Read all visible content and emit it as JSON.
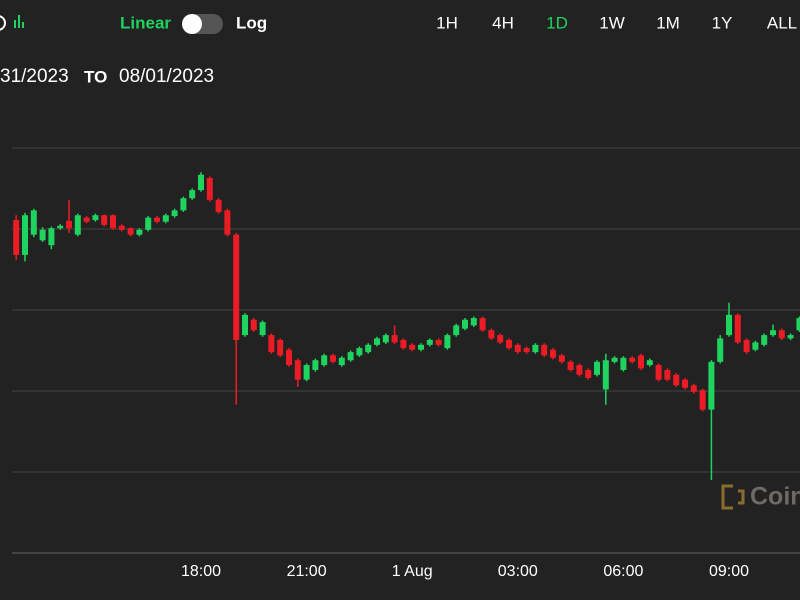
{
  "toolbar": {
    "scale_linear": "Linear",
    "scale_log": "Log",
    "ranges": [
      "1H",
      "4H",
      "1D",
      "1W",
      "1M",
      "1Y",
      "ALL"
    ],
    "active_range": "1D"
  },
  "date_range": {
    "from": "31/2023",
    "to_label": "TO",
    "to": "08/01/2023"
  },
  "watermark": "Coin",
  "chart_data": {
    "type": "candlestick",
    "categories": [
      null,
      null,
      null,
      null,
      null,
      null,
      null,
      null,
      null,
      null,
      null,
      null,
      null,
      null,
      null,
      null,
      null,
      null,
      null,
      null,
      null,
      "18:00",
      null,
      null,
      null,
      null,
      null,
      null,
      null,
      null,
      null,
      null,
      null,
      "21:00",
      null,
      null,
      null,
      null,
      null,
      null,
      null,
      null,
      null,
      null,
      null,
      "1 Aug",
      null,
      null,
      null,
      null,
      null,
      null,
      null,
      null,
      null,
      null,
      null,
      "03:00",
      null,
      null,
      null,
      null,
      null,
      null,
      null,
      null,
      null,
      null,
      null,
      "06:00",
      null,
      null,
      null,
      null,
      null,
      null,
      null,
      null,
      null,
      null,
      null,
      "09:00",
      null,
      null,
      null,
      null,
      null,
      null,
      null,
      null
    ],
    "open": [
      411,
      368,
      393,
      386,
      380,
      401,
      410,
      393,
      414,
      411,
      417,
      417,
      404,
      401,
      393,
      399,
      414,
      409,
      416,
      423,
      438,
      448,
      463,
      436,
      423,
      393,
      269,
      288,
      269,
      269,
      263,
      251,
      238,
      214,
      226,
      232,
      244,
      232,
      238,
      244,
      248,
      257,
      260,
      269,
      263,
      257,
      251,
      257,
      263,
      253,
      269,
      277,
      281,
      290,
      275,
      269,
      263,
      257,
      253,
      248,
      257,
      251,
      244,
      236,
      232,
      226,
      220,
      202,
      236,
      226,
      241,
      244,
      232,
      232,
      226,
      220,
      214,
      207,
      201,
      177,
      236,
      269,
      294,
      263,
      251,
      257,
      269,
      275,
      265,
      275
    ],
    "high": [
      417,
      420,
      425,
      402,
      403,
      406,
      436,
      419,
      416,
      419,
      418,
      418,
      406,
      402,
      401,
      416,
      416,
      419,
      425,
      440,
      450,
      470,
      465,
      438,
      425,
      395,
      296,
      290,
      287,
      271,
      265,
      253,
      240,
      234,
      240,
      246,
      246,
      243,
      250,
      255,
      259,
      267,
      271,
      281,
      265,
      259,
      259,
      265,
      265,
      271,
      283,
      290,
      292,
      292,
      277,
      271,
      265,
      259,
      255,
      259,
      259,
      253,
      246,
      238,
      234,
      228,
      238,
      246,
      243,
      243,
      243,
      246,
      240,
      234,
      228,
      222,
      216,
      209,
      203,
      238,
      269,
      309,
      296,
      265,
      262,
      271,
      282,
      277,
      271,
      292
    ],
    "low": [
      362,
      360,
      390,
      384,
      375,
      399,
      395,
      391,
      407,
      409,
      403,
      399,
      397,
      391,
      391,
      397,
      407,
      407,
      414,
      421,
      436,
      446,
      434,
      419,
      391,
      183,
      267,
      273,
      267,
      246,
      242,
      230,
      205,
      212,
      224,
      230,
      234,
      230,
      236,
      242,
      246,
      255,
      258,
      258,
      251,
      249,
      249,
      255,
      255,
      251,
      267,
      275,
      279,
      273,
      263,
      258,
      251,
      246,
      246,
      246,
      242,
      239,
      234,
      224,
      218,
      214,
      218,
      183,
      234,
      224,
      234,
      226,
      230,
      212,
      212,
      205,
      202,
      197,
      175,
      90,
      234,
      267,
      258,
      246,
      249,
      255,
      267,
      263,
      263,
      273
    ],
    "close": [
      368,
      417,
      423,
      399,
      401,
      404,
      401,
      417,
      409,
      417,
      405,
      401,
      399,
      393,
      399,
      414,
      409,
      417,
      423,
      438,
      448,
      467,
      436,
      421,
      393,
      263,
      294,
      275,
      285,
      248,
      244,
      232,
      214,
      232,
      238,
      244,
      236,
      241,
      248,
      253,
      257,
      265,
      269,
      260,
      253,
      251,
      257,
      263,
      257,
      269,
      281,
      288,
      290,
      275,
      265,
      260,
      253,
      248,
      248,
      257,
      244,
      241,
      236,
      226,
      220,
      216,
      236,
      238,
      241,
      241,
      236,
      228,
      238,
      214,
      214,
      207,
      204,
      199,
      177,
      236,
      265,
      294,
      260,
      248,
      260,
      269,
      275,
      265,
      269,
      290
    ],
    "up_color": "#1fd35f",
    "down_color": "#ec1c24",
    "ylim": [
      0,
      560
    ],
    "yticks": [
      0,
      100,
      200,
      300,
      400,
      500
    ],
    "grid": true
  }
}
